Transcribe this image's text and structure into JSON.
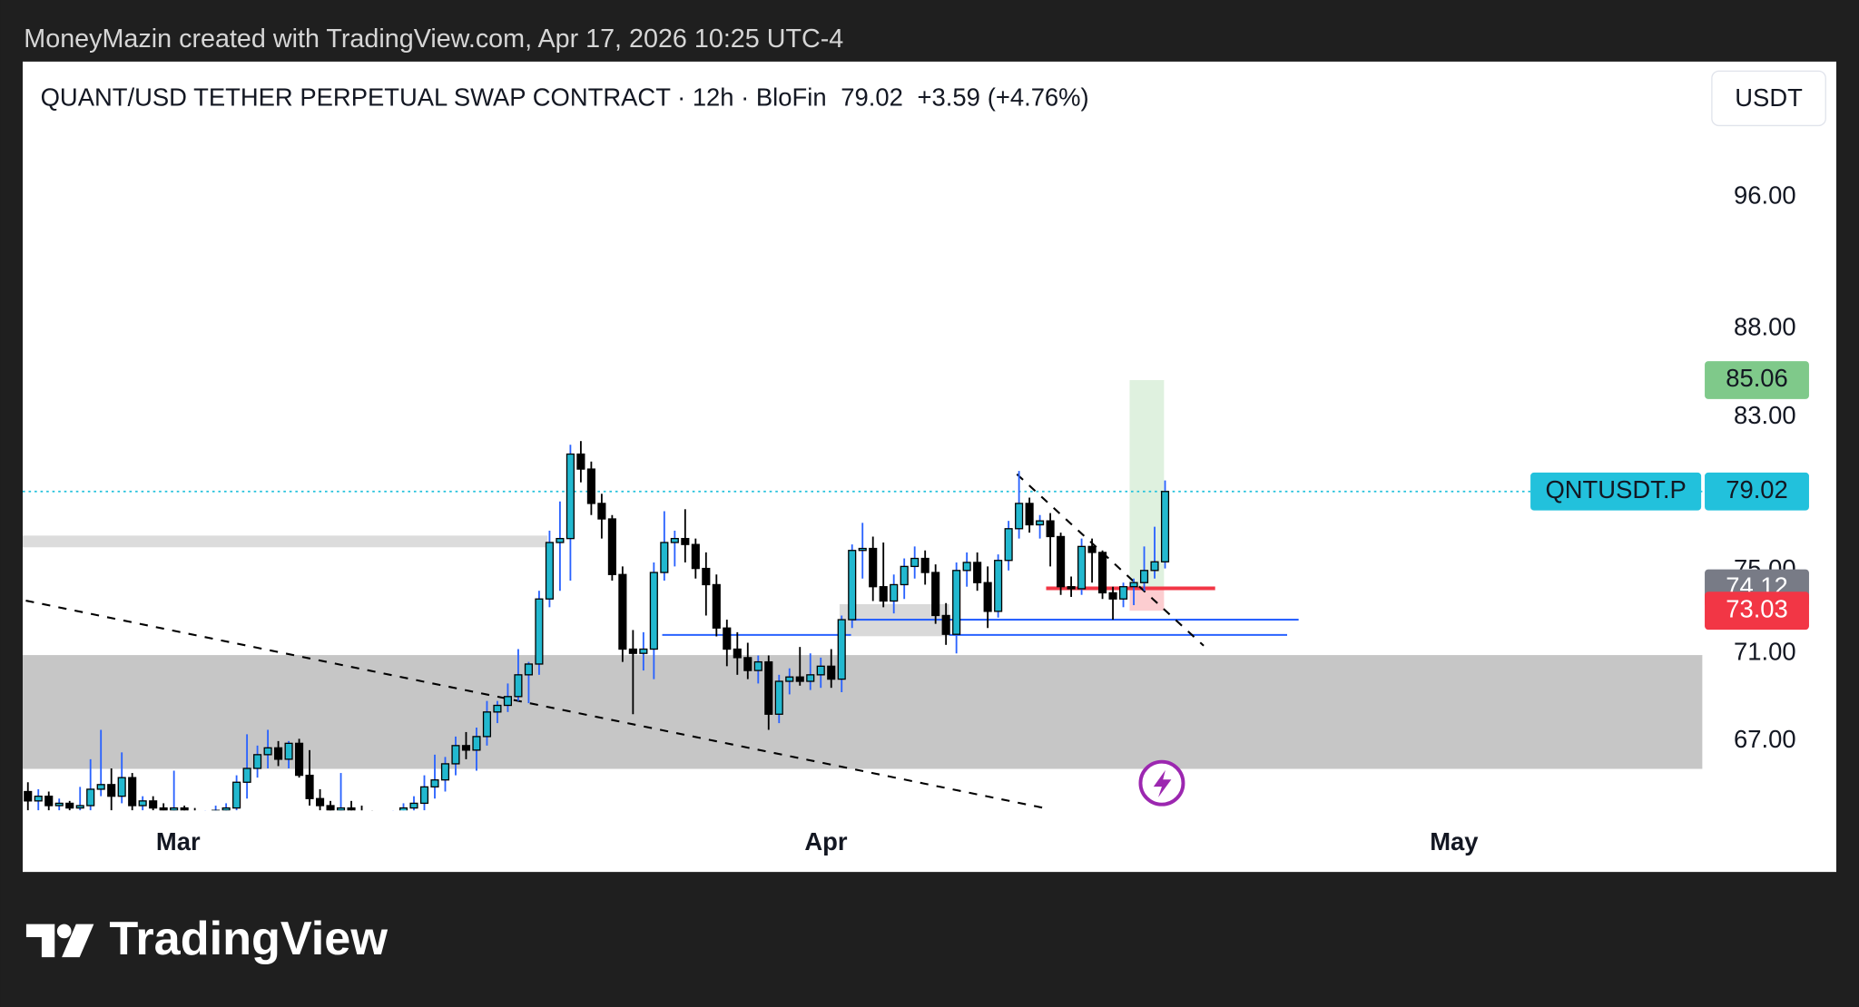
{
  "header": {
    "credit": "MoneyMazin created with TradingView.com, Apr 17, 2026 10:25 UTC-4",
    "currency_button": "USDT"
  },
  "chart_data": {
    "type": "candlestick",
    "title": "QUANT/USD TETHER PERPETUAL SWAP CONTRACT · 12h · BloFin",
    "symbol": "QNTUSDT.P",
    "last_price": 79.02,
    "change_label": "+3.59",
    "change_pct_label": "(+4.76%)",
    "log_scale": true,
    "ylim": [
      64.0,
      105.0
    ],
    "yticks": [
      {
        "value": 67,
        "label": "67.00"
      },
      {
        "value": 71,
        "label": "71.00"
      },
      {
        "value": 75,
        "label": "75.00"
      },
      {
        "value": 83,
        "label": "83.00"
      },
      {
        "value": 88,
        "label": "88.00"
      },
      {
        "value": 96,
        "label": "96.00"
      }
    ],
    "xlim": [
      -0.5,
      160.5
    ],
    "xticks": [
      {
        "value": 14.4,
        "label": "Mar"
      },
      {
        "value": 76.5,
        "label": "Apr"
      },
      {
        "value": 136.7,
        "label": "May"
      }
    ],
    "up_color": "#22b8cf",
    "down_color": "#000000",
    "wick_up_color": "#2962ff",
    "last_price_color": "#22c1dc",
    "candles": {
      "open": [
        64.8,
        64.4,
        64.6,
        64.2,
        64.3,
        64.1,
        64.2,
        64.9,
        65.1,
        64.6,
        65.4,
        64.2,
        64.4,
        64.1,
        64.0,
        64.1,
        63.9,
        63.8,
        63.9,
        64.0,
        64.1,
        65.2,
        65.8,
        66.4,
        66.7,
        66.2,
        66.9,
        65.5,
        64.5,
        64.2,
        64.0,
        64.1,
        63.9,
        63.8,
        63.7,
        63.8,
        63.9,
        64.1,
        64.3,
        65.0,
        65.3,
        66.0,
        66.8,
        66.6,
        67.2,
        68.3,
        68.6,
        69.0,
        70.0,
        70.5,
        73.6,
        76.4,
        76.6,
        81.0,
        80.2,
        78.4,
        77.6,
        74.8,
        71.2,
        71.0,
        71.2,
        74.9,
        76.4,
        76.6,
        76.3,
        75.1,
        74.3,
        72.2,
        71.2,
        70.8,
        70.2,
        70.6,
        68.2,
        69.7,
        69.9,
        69.7,
        70.0,
        70.4,
        69.8,
        72.6,
        76.0,
        76.1,
        74.2,
        73.5,
        74.3,
        75.2,
        75.6,
        74.9,
        72.8,
        71.9,
        75.0,
        75.4,
        74.4,
        73.0,
        75.5,
        77.1,
        78.4,
        77.3,
        77.5,
        76.7,
        74.2,
        74.1,
        76.2,
        75.9,
        73.9,
        73.6,
        74.2,
        74.4,
        75.0,
        75.43
      ],
      "high": [
        65.2,
        64.9,
        64.8,
        64.5,
        64.4,
        65.0,
        66.2,
        67.5,
        65.8,
        66.5,
        65.6,
        64.6,
        64.6,
        64.3,
        65.7,
        64.2,
        64.1,
        64.0,
        64.2,
        64.3,
        65.5,
        67.3,
        66.8,
        67.5,
        67.0,
        67.0,
        67.1,
        66.6,
        64.9,
        64.4,
        65.6,
        64.4,
        64.2,
        64.0,
        63.9,
        64.0,
        64.3,
        64.6,
        65.5,
        66.4,
        66.3,
        67.2,
        67.4,
        67.6,
        68.8,
        68.8,
        69.6,
        71.2,
        70.6,
        74.0,
        77.0,
        78.5,
        81.5,
        81.7,
        80.6,
        78.9,
        77.8,
        75.2,
        72.1,
        72.0,
        75.4,
        78.0,
        77.0,
        78.1,
        76.6,
        75.9,
        74.8,
        72.6,
        72.0,
        71.5,
        70.9,
        70.9,
        70.0,
        70.3,
        71.3,
        71.0,
        70.8,
        71.2,
        72.8,
        76.3,
        77.4,
        76.7,
        76.4,
        74.8,
        75.6,
        76.2,
        76.0,
        75.3,
        73.4,
        75.4,
        75.9,
        75.9,
        75.2,
        75.8,
        77.5,
        80.1,
        78.7,
        77.8,
        77.9,
        76.9,
        74.7,
        76.6,
        76.6,
        76.0,
        74.2,
        74.4,
        74.6,
        76.2,
        77.2,
        79.6
      ],
      "low": [
        64.0,
        64.0,
        64.0,
        64.0,
        64.0,
        64.0,
        64.0,
        64.6,
        64.0,
        64.3,
        64.0,
        64.0,
        64.0,
        64.0,
        63.9,
        63.8,
        63.7,
        63.7,
        63.7,
        63.8,
        64.0,
        64.5,
        65.4,
        65.8,
        65.9,
        65.8,
        65.4,
        64.2,
        64.0,
        63.8,
        63.8,
        63.8,
        63.7,
        63.6,
        63.6,
        63.6,
        63.8,
        63.9,
        64.0,
        64.5,
        64.8,
        65.5,
        66.2,
        65.7,
        66.8,
        67.8,
        68.3,
        68.8,
        68.7,
        70.0,
        73.2,
        74.0,
        74.5,
        79.5,
        77.8,
        76.6,
        74.5,
        70.6,
        68.2,
        70.2,
        69.8,
        74.5,
        75.2,
        75.4,
        74.6,
        72.8,
        71.8,
        70.4,
        70.0,
        69.8,
        69.6,
        67.5,
        67.8,
        69.1,
        69.5,
        69.3,
        69.4,
        69.4,
        69.2,
        72.2,
        74.6,
        73.5,
        73.2,
        72.9,
        73.6,
        74.6,
        74.3,
        72.4,
        71.4,
        71.0,
        74.2,
        74.0,
        72.2,
        72.7,
        75.0,
        76.6,
        76.9,
        76.6,
        75.2,
        73.8,
        73.7,
        73.8,
        74.4,
        73.6,
        72.6,
        73.2,
        73.3,
        74.0,
        74.6,
        75.1
      ],
      "close": [
        64.4,
        64.6,
        64.2,
        64.3,
        64.1,
        64.2,
        64.9,
        65.1,
        64.6,
        65.4,
        64.2,
        64.4,
        64.1,
        64.0,
        64.1,
        63.9,
        63.8,
        63.9,
        64.0,
        64.1,
        65.2,
        65.8,
        66.4,
        66.7,
        66.2,
        66.9,
        65.5,
        64.5,
        64.2,
        64.0,
        64.1,
        63.9,
        63.8,
        63.7,
        63.8,
        63.9,
        64.1,
        64.3,
        65.0,
        65.3,
        66.0,
        66.8,
        66.6,
        67.2,
        68.3,
        68.6,
        69.0,
        70.0,
        70.5,
        73.6,
        76.4,
        76.6,
        81.0,
        80.2,
        78.4,
        77.6,
        74.8,
        71.2,
        71.0,
        71.2,
        74.9,
        76.4,
        76.6,
        76.3,
        75.1,
        74.3,
        72.2,
        71.2,
        70.8,
        70.2,
        70.6,
        68.2,
        69.7,
        69.9,
        69.7,
        70.0,
        70.4,
        69.8,
        72.6,
        76.0,
        76.1,
        74.2,
        73.5,
        74.3,
        75.2,
        75.6,
        74.9,
        72.8,
        71.9,
        75.0,
        75.4,
        74.4,
        73.0,
        75.5,
        77.1,
        78.4,
        77.3,
        77.5,
        76.7,
        74.2,
        74.1,
        76.2,
        75.9,
        73.9,
        73.6,
        74.2,
        74.4,
        75.0,
        75.43,
        79.02
      ]
    },
    "zones": [
      {
        "x": [
          -0.5,
          160.5
        ],
        "y": [
          65.78,
          70.92
        ],
        "color": "#c6c6c6"
      },
      {
        "x": [
          -0.5,
          49.8
        ],
        "y": [
          76.16,
          76.75
        ],
        "color": "#dcdcdc"
      },
      {
        "x": [
          77.8,
          88.3
        ],
        "y": [
          71.81,
          73.35
        ],
        "color": "#d9d9d9"
      }
    ],
    "trend_lines": [
      {
        "x": [
          -0.2,
          97.4
        ],
        "y": [
          73.52,
          64.1
        ]
      },
      {
        "x": [
          94.8,
          112.7
        ],
        "y": [
          79.93,
          71.36
        ]
      }
    ],
    "levels": [
      {
        "x": [
          60.8,
          78.9
        ],
        "y": 71.87
      },
      {
        "x": [
          78.9,
          121.8
        ],
        "y": 72.6
      },
      {
        "x": [
          88.3,
          120.7
        ],
        "y": 71.87
      }
    ],
    "position": {
      "x": [
        105.6,
        108.9
      ],
      "entry": 74.12,
      "target": 85.06,
      "stop": 73.03,
      "entry_line_x": [
        97.6,
        113.8
      ]
    }
  },
  "footer": {
    "brand": "TradingView"
  }
}
